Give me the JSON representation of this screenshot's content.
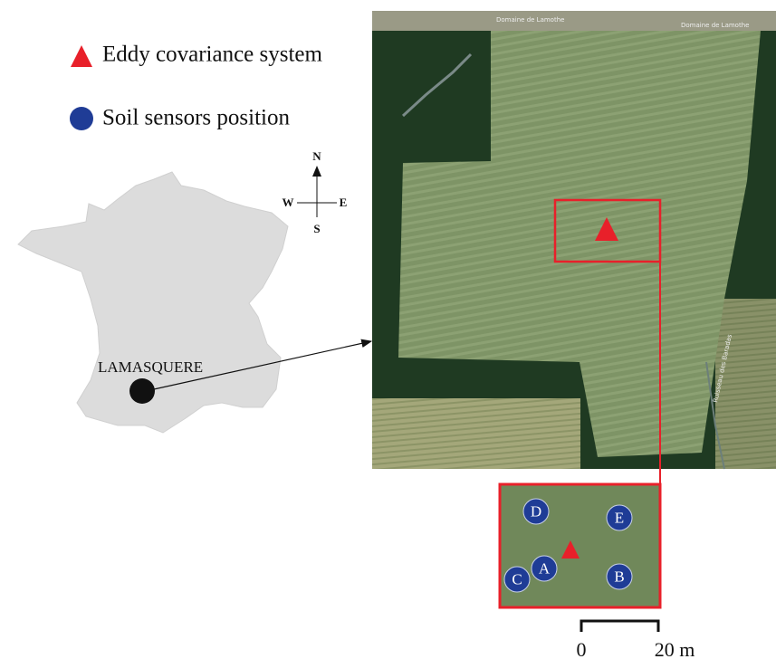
{
  "legend": [
    {
      "label": "Eddy covariance system"
    },
    {
      "label": "Soil sensors position"
    }
  ],
  "compass": {
    "north": "N",
    "south": "S",
    "west": "W",
    "east": "E"
  },
  "site": {
    "label": "LAMASQUERE"
  },
  "map_labels": [
    "Domaine de Lamothe",
    "Domaine de Lamothe",
    "Ruisseau des Baradas"
  ],
  "inset": {
    "sensors": [
      "D",
      "E",
      "A",
      "B",
      "C"
    ]
  },
  "scale": {
    "start": "0",
    "end": "20 m"
  }
}
